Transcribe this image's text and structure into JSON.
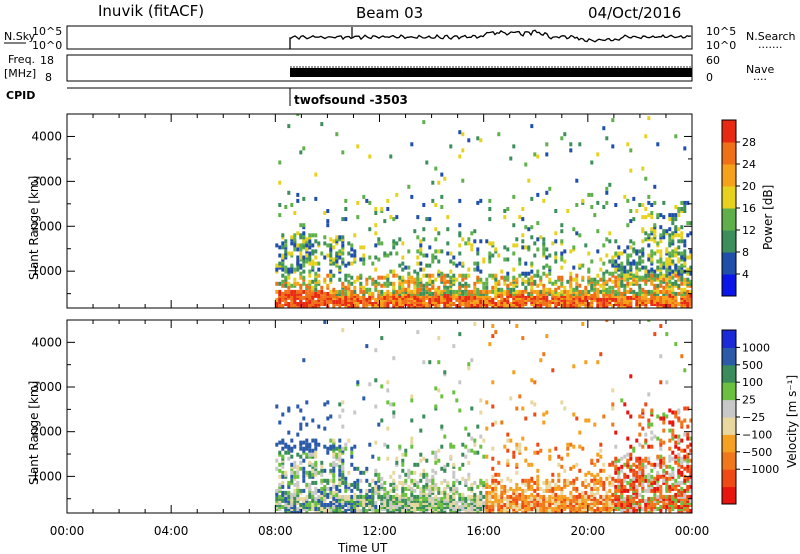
{
  "header": {
    "station": "Inuvik (fitACF)",
    "beam": "Beam 03",
    "date": "04/Oct/2016"
  },
  "top_panels": {
    "nsky_label": "N.Sky",
    "nsky_ticks": [
      "10^5",
      "10^0"
    ],
    "nsearch_label": "N.Search",
    "nsearch_dots": ".......",
    "nsearch_ticks": [
      "10^5",
      "10^0"
    ],
    "freq_label": "Freq.",
    "freq_unit": "[MHz]",
    "freq_ticks": [
      "18",
      "8"
    ],
    "nave_label": "Nave",
    "nave_dots": "....",
    "nave_ticks": [
      "60",
      "0"
    ],
    "cpid_label": "CPID",
    "cpid_value": "twofsound -3503"
  },
  "colors": {
    "power": [
      "#0a16e8",
      "#1f4fa8",
      "#3c8f5a",
      "#5fb04a",
      "#e6d21e",
      "#f5a21a",
      "#f07018",
      "#e82a12"
    ],
    "velocity": [
      "#e8140e",
      "#f04a14",
      "#f0781a",
      "#f5a020",
      "#e8d8a0",
      "#c8c8c8",
      "#6cc040",
      "#3a8c5a",
      "#2a5aa8",
      "#1a2ad8"
    ]
  },
  "chart_data": [
    {
      "type": "heatmap",
      "title": "Power",
      "ylabel": "Slant Range [km]",
      "xlabel": "",
      "x_ticks": [
        "00:00",
        "04:00",
        "08:00",
        "12:00",
        "16:00",
        "20:00",
        "00:00"
      ],
      "xlim_hours": [
        0,
        24
      ],
      "ylim": [
        180,
        4500
      ],
      "y_ticks": [
        1000,
        2000,
        3000,
        4000
      ],
      "colorbar": {
        "label": "Power [dB]",
        "ticks": [
          "4",
          "8",
          "12",
          "16",
          "20",
          "24",
          "28"
        ],
        "range": [
          0,
          32
        ]
      },
      "data_start_hour": 8.0
    },
    {
      "type": "heatmap",
      "title": "Velocity",
      "ylabel": "Slant Range [km]",
      "xlabel": "Time UT",
      "x_ticks": [
        "00:00",
        "04:00",
        "08:00",
        "12:00",
        "16:00",
        "20:00",
        "00:00"
      ],
      "xlim_hours": [
        0,
        24
      ],
      "ylim": [
        180,
        4500
      ],
      "y_ticks": [
        1000,
        2000,
        3000,
        4000
      ],
      "colorbar": {
        "label": "Velocity [m s⁻¹]",
        "ticks": [
          "1000",
          "500",
          "100",
          "25",
          "−25",
          "−100",
          "−500",
          "−1000"
        ]
      },
      "data_start_hour": 8.0
    }
  ]
}
